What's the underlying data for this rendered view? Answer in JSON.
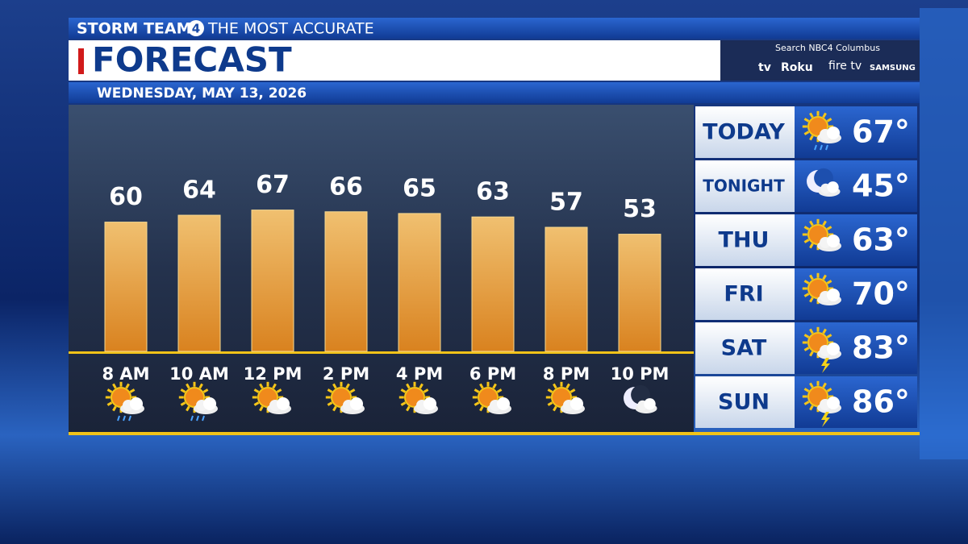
{
  "header": {
    "brand": "STORM TEAM",
    "brand_number": "4",
    "tagline": "THE MOST ACCURATE",
    "title": "FORECAST",
    "date": "WEDNESDAY, MAY 13, 2026"
  },
  "streaming": {
    "search": "Search NBC4 Columbus",
    "platforms": [
      "tv",
      "Roku",
      "fire tv",
      "SAMSUNG"
    ]
  },
  "chart_data": {
    "type": "bar",
    "categories": [
      "8 AM",
      "10 AM",
      "12 PM",
      "2 PM",
      "4 PM",
      "6 PM",
      "8 PM",
      "10 PM"
    ],
    "values": [
      60,
      64,
      67,
      66,
      65,
      63,
      57,
      53
    ],
    "color": "#e49a35"
  },
  "daily": [
    {
      "day": "TODAY",
      "temp": "67°"
    },
    {
      "day": "TONIGHT",
      "temp": "45°"
    },
    {
      "day": "THU",
      "temp": "63°"
    },
    {
      "day": "FRI",
      "temp": "70°"
    },
    {
      "day": "SAT",
      "temp": "83°"
    },
    {
      "day": "SUN",
      "temp": "86°"
    }
  ]
}
